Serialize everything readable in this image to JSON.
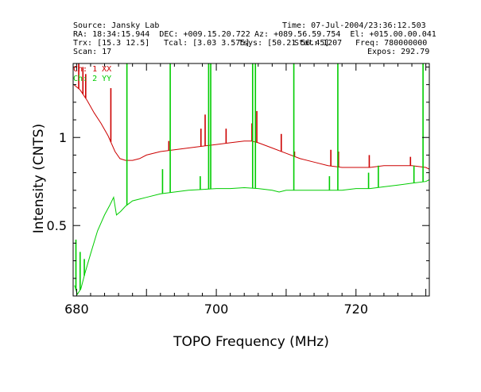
{
  "header": {
    "source": "Source: Jansky Lab",
    "time": "Time: 07-Jul-2004/23:36:12.503",
    "ra_dec": "RA: 18:34:15.944  DEC: +009.15.20.722",
    "az_el": "Az: +089.56.59.754  El: +015.00.00.041",
    "trx": "Trx: [15.3 12.5]",
    "tcal": "Tcal: [3.03 3.575]",
    "tsys": "Tsys: [50.21 56.45]",
    "freq_a": "Freq: 780000000",
    "freq_b": "Stat: 1207",
    "scan": "Scan: 17",
    "expos": "Expos: 292.79"
  },
  "chart_data": {
    "type": "line",
    "xlabel": "TOPO Frequency (MHz)",
    "ylabel": "Intensity (CNTS)",
    "xlim": [
      679.5,
      730.5
    ],
    "ylim": [
      0.1,
      1.42
    ],
    "x_ticks": [
      680,
      700,
      720
    ],
    "y_ticks": [
      0.5,
      1
    ],
    "y_tick_labels": [
      "0.5",
      "1"
    ],
    "x_tick_labels": [
      "680",
      "700",
      "720"
    ],
    "legend_position": "top-left",
    "series": [
      {
        "name": "Ch: 1 XX",
        "color": "#cc0000",
        "baseline": [
          [
            679.6,
            1.3
          ],
          [
            680.5,
            1.27
          ],
          [
            681.5,
            1.21
          ],
          [
            682.5,
            1.14
          ],
          [
            683.5,
            1.08
          ],
          [
            684.5,
            1.01
          ],
          [
            685.5,
            0.92
          ],
          [
            686.2,
            0.88
          ],
          [
            687,
            0.87
          ],
          [
            688,
            0.87
          ],
          [
            689,
            0.88
          ],
          [
            690,
            0.9
          ],
          [
            692,
            0.92
          ],
          [
            694,
            0.93
          ],
          [
            696,
            0.94
          ],
          [
            698,
            0.95
          ],
          [
            700,
            0.96
          ],
          [
            702,
            0.97
          ],
          [
            704,
            0.98
          ],
          [
            705,
            0.98
          ],
          [
            706,
            0.97
          ],
          [
            708,
            0.94
          ],
          [
            710,
            0.91
          ],
          [
            712,
            0.88
          ],
          [
            714,
            0.86
          ],
          [
            716,
            0.84
          ],
          [
            718,
            0.83
          ],
          [
            720,
            0.83
          ],
          [
            722,
            0.83
          ],
          [
            724,
            0.84
          ],
          [
            726,
            0.84
          ],
          [
            728,
            0.84
          ],
          [
            730,
            0.83
          ],
          [
            730.5,
            0.82
          ]
        ],
        "spikes": [
          [
            680.3,
            1.42
          ],
          [
            680.9,
            1.4
          ],
          [
            681.3,
            1.36
          ],
          [
            684.9,
            1.28
          ],
          [
            693.2,
            0.98
          ],
          [
            697.8,
            1.05
          ],
          [
            698.4,
            1.13
          ],
          [
            701.4,
            1.05
          ],
          [
            705.1,
            1.08
          ],
          [
            705.8,
            1.15
          ],
          [
            709.3,
            1.02
          ],
          [
            711.2,
            0.92
          ],
          [
            716.4,
            0.93
          ],
          [
            717.5,
            0.92
          ],
          [
            721.9,
            0.9
          ],
          [
            727.8,
            0.89
          ]
        ]
      },
      {
        "name": "Ch: 2 YY",
        "color": "#00cc00",
        "baseline": [
          [
            679.7,
            0.16
          ],
          [
            680.1,
            0.11
          ],
          [
            680.6,
            0.14
          ],
          [
            681.2,
            0.23
          ],
          [
            682,
            0.34
          ],
          [
            683,
            0.47
          ],
          [
            684,
            0.56
          ],
          [
            684.8,
            0.62
          ],
          [
            685.3,
            0.66
          ],
          [
            685.7,
            0.56
          ],
          [
            686.3,
            0.58
          ],
          [
            687,
            0.61
          ],
          [
            688,
            0.64
          ],
          [
            689,
            0.65
          ],
          [
            690,
            0.66
          ],
          [
            692,
            0.68
          ],
          [
            694,
            0.69
          ],
          [
            696,
            0.7
          ],
          [
            698,
            0.705
          ],
          [
            700,
            0.71
          ],
          [
            702,
            0.71
          ],
          [
            704,
            0.715
          ],
          [
            706,
            0.71
          ],
          [
            708,
            0.7
          ],
          [
            709,
            0.69
          ],
          [
            710,
            0.7
          ],
          [
            712,
            0.7
          ],
          [
            714,
            0.7
          ],
          [
            716,
            0.7
          ],
          [
            718,
            0.7
          ],
          [
            720,
            0.71
          ],
          [
            722,
            0.71
          ],
          [
            724,
            0.72
          ],
          [
            726,
            0.73
          ],
          [
            728,
            0.74
          ],
          [
            730,
            0.75
          ],
          [
            730.5,
            0.76
          ]
        ],
        "spikes": [
          [
            679.9,
            0.42
          ],
          [
            680.5,
            0.35
          ],
          [
            681.1,
            0.31
          ],
          [
            687.2,
            1.42
          ],
          [
            692.3,
            0.82
          ],
          [
            693.4,
            1.42
          ],
          [
            697.7,
            0.78
          ],
          [
            698.9,
            1.42
          ],
          [
            699.2,
            1.42
          ],
          [
            705.2,
            1.42
          ],
          [
            705.6,
            1.42
          ],
          [
            711.1,
            1.42
          ],
          [
            716.2,
            0.78
          ],
          [
            717.4,
            1.42
          ],
          [
            721.8,
            0.8
          ],
          [
            723.2,
            0.84
          ],
          [
            728.3,
            0.84
          ],
          [
            729.6,
            1.42
          ]
        ]
      }
    ]
  }
}
